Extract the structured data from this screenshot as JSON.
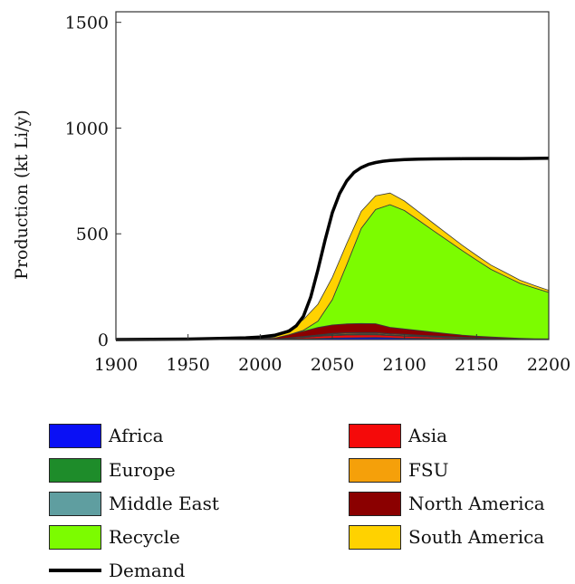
{
  "chart_data": {
    "type": "area",
    "title": "",
    "xlabel": "",
    "ylabel": "Production (kt Li/y)",
    "xlim": [
      1900,
      2200
    ],
    "ylim": [
      0,
      1550
    ],
    "xticks": [
      1900,
      1950,
      2000,
      2050,
      2100,
      2150,
      2200
    ],
    "yticks": [
      0,
      500,
      1000,
      1500
    ],
    "grid": false,
    "legend_position": "bottom",
    "x": [
      1900,
      2000,
      2010,
      2020,
      2030,
      2040,
      2050,
      2060,
      2070,
      2080,
      2090,
      2100,
      2110,
      2120,
      2130,
      2140,
      2150,
      2160,
      2170,
      2180,
      2190,
      2200
    ],
    "series": [
      {
        "name": "Africa",
        "color": "#0a10f5",
        "values": [
          0,
          0,
          0,
          2,
          3,
          5,
          7,
          8,
          9,
          10,
          8,
          6,
          5,
          4,
          3,
          2,
          1,
          1,
          0,
          0,
          0,
          0
        ]
      },
      {
        "name": "Asia",
        "color": "#f50a0a",
        "values": [
          0,
          1,
          2,
          4,
          6,
          10,
          12,
          13,
          13,
          12,
          11,
          10,
          9,
          7,
          6,
          5,
          4,
          3,
          2,
          2,
          1,
          1
        ]
      },
      {
        "name": "Europe",
        "color": "#1e8c2a",
        "values": [
          0,
          0,
          0,
          1,
          2,
          3,
          4,
          4,
          4,
          4,
          3,
          3,
          3,
          2,
          2,
          1,
          1,
          1,
          1,
          0,
          0,
          0
        ]
      },
      {
        "name": "FSU",
        "color": "#f5a00a",
        "values": [
          0,
          0,
          0,
          1,
          2,
          3,
          4,
          5,
          5,
          5,
          4,
          4,
          3,
          3,
          2,
          2,
          1,
          1,
          1,
          0,
          0,
          0
        ]
      },
      {
        "name": "Middle East",
        "color": "#5f9ea0",
        "values": [
          0,
          0,
          0,
          0,
          1,
          1,
          2,
          2,
          2,
          2,
          2,
          2,
          1,
          1,
          1,
          1,
          1,
          0,
          0,
          0,
          0,
          0
        ]
      },
      {
        "name": "North America",
        "color": "#8b0000",
        "values": [
          0,
          3,
          5,
          15,
          25,
          35,
          40,
          42,
          43,
          42,
          30,
          25,
          22,
          18,
          14,
          10,
          8,
          6,
          5,
          4,
          3,
          2
        ]
      },
      {
        "name": "Recycle",
        "color": "#7cfc00",
        "values": [
          0,
          0,
          0,
          0,
          5,
          30,
          120,
          280,
          450,
          540,
          580,
          560,
          520,
          480,
          440,
          400,
          360,
          320,
          290,
          260,
          240,
          220
        ]
      },
      {
        "name": "South America",
        "color": "#ffd200",
        "values": [
          0,
          0,
          5,
          25,
          50,
          80,
          105,
          100,
          80,
          65,
          55,
          45,
          40,
          35,
          30,
          25,
          22,
          20,
          18,
          15,
          12,
          10
        ]
      }
    ],
    "demand": {
      "name": "Demand",
      "color": "#000000",
      "x": [
        1900,
        1950,
        1990,
        2000,
        2010,
        2020,
        2025,
        2030,
        2035,
        2040,
        2045,
        2050,
        2055,
        2060,
        2065,
        2070,
        2075,
        2080,
        2085,
        2090,
        2100,
        2110,
        2120,
        2140,
        2160,
        2180,
        2200
      ],
      "values": [
        0,
        2,
        8,
        12,
        20,
        40,
        65,
        110,
        200,
        330,
        470,
        600,
        690,
        750,
        790,
        813,
        828,
        837,
        843,
        847,
        851,
        853,
        854,
        855,
        856,
        856,
        857
      ]
    }
  },
  "legend": [
    {
      "label": "Africa",
      "color": "#0a10f5"
    },
    {
      "label": "Asia",
      "color": "#f50a0a"
    },
    {
      "label": "Europe",
      "color": "#1e8c2a"
    },
    {
      "label": "FSU",
      "color": "#f5a00a"
    },
    {
      "label": "Middle East",
      "color": "#5f9ea0"
    },
    {
      "label": "North America",
      "color": "#8b0000"
    },
    {
      "label": "Recycle",
      "color": "#7cfc00"
    },
    {
      "label": "South America",
      "color": "#ffd200"
    }
  ],
  "demand_label": "Demand"
}
